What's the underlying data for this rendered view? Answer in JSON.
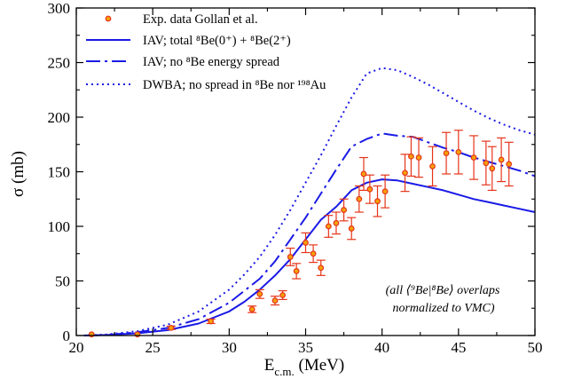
{
  "chart_data": {
    "type": "scatter",
    "xlim": [
      20,
      50
    ],
    "ylim": [
      0,
      300
    ],
    "x_ticks": [
      "20",
      "25",
      "30",
      "35",
      "40",
      "45",
      "50"
    ],
    "y_ticks": [
      "0",
      "50",
      "100",
      "150",
      "200",
      "250",
      "300"
    ],
    "xlabel": "E",
    "xlabel_sub": "c.m.",
    "xlabel_unit": " (MeV)",
    "ylabel": "σ (mb)",
    "grid": false,
    "legend_position": "top-left",
    "colors": {
      "data": "#e63419",
      "marker_fill": "#f4a00a",
      "theory": "#1a1ae6"
    },
    "legend": [
      {
        "label": "Exp. data Gollan et al.",
        "style": "marker"
      },
      {
        "label": "IAV; total ⁸Be(0⁺) + ⁸Be(2⁺)",
        "style": "solid"
      },
      {
        "label": "IAV; no ⁸Be energy spread",
        "style": "dashdot"
      },
      {
        "label": "DWBA; no spread in ⁸Be nor ¹⁹⁸Au",
        "style": "dotted"
      }
    ],
    "annotation": [
      "(all ⟨⁹Be|⁸Be⟩ overlaps",
      "normalized to VMC)"
    ],
    "series": [
      {
        "name": "Exp. data Gollan et al.",
        "style": "marker",
        "points": [
          [
            21.0,
            1,
            0
          ],
          [
            24.0,
            1,
            0
          ],
          [
            26.2,
            7,
            1.5
          ],
          [
            28.8,
            13,
            2
          ],
          [
            31.5,
            24,
            3
          ],
          [
            32.0,
            38,
            4
          ],
          [
            33.0,
            32,
            4
          ],
          [
            33.5,
            37,
            4
          ],
          [
            34.0,
            72,
            8
          ],
          [
            34.4,
            59,
            7
          ],
          [
            35.0,
            85,
            9
          ],
          [
            35.5,
            75,
            8
          ],
          [
            36.0,
            62,
            7
          ],
          [
            36.5,
            100,
            10
          ],
          [
            37.0,
            103,
            10
          ],
          [
            37.5,
            115,
            10
          ],
          [
            38.0,
            98,
            10
          ],
          [
            38.5,
            125,
            12
          ],
          [
            38.8,
            148,
            15
          ],
          [
            39.2,
            134,
            13
          ],
          [
            39.7,
            123,
            14
          ],
          [
            40.2,
            132,
            15
          ],
          [
            41.5,
            149,
            17
          ],
          [
            41.9,
            164,
            18
          ],
          [
            42.4,
            163,
            18
          ],
          [
            43.3,
            155,
            18
          ],
          [
            44.2,
            167,
            19
          ],
          [
            45.0,
            168,
            20
          ],
          [
            46.0,
            163,
            20
          ],
          [
            46.8,
            158,
            20
          ],
          [
            47.2,
            153,
            20
          ],
          [
            47.8,
            161,
            20
          ],
          [
            48.3,
            157,
            20
          ]
        ]
      },
      {
        "name": "IAV; total ⁸Be(0⁺) + ⁸Be(2⁺)",
        "style": "solid",
        "points": [
          [
            20.5,
            0
          ],
          [
            22,
            0.5
          ],
          [
            24,
            2
          ],
          [
            26,
            5
          ],
          [
            28,
            11
          ],
          [
            30,
            22
          ],
          [
            31,
            31
          ],
          [
            32,
            42
          ],
          [
            33,
            55
          ],
          [
            34,
            70
          ],
          [
            35,
            88
          ],
          [
            36,
            106
          ],
          [
            37,
            118
          ],
          [
            38,
            133
          ],
          [
            39,
            140
          ],
          [
            40,
            143
          ],
          [
            41,
            142
          ],
          [
            42,
            139
          ],
          [
            43,
            136
          ],
          [
            44,
            133
          ],
          [
            45,
            129
          ],
          [
            46,
            125
          ],
          [
            47,
            122
          ],
          [
            48,
            119
          ],
          [
            49,
            116
          ],
          [
            50,
            113
          ]
        ]
      },
      {
        "name": "IAV; no ⁸Be energy spread",
        "style": "dashdot",
        "points": [
          [
            20.5,
            0
          ],
          [
            22,
            0.5
          ],
          [
            24,
            3
          ],
          [
            26,
            7
          ],
          [
            28,
            15
          ],
          [
            30,
            30
          ],
          [
            32,
            52
          ],
          [
            33,
            68
          ],
          [
            34,
            88
          ],
          [
            35,
            108
          ],
          [
            36,
            130
          ],
          [
            37,
            152
          ],
          [
            38,
            173
          ],
          [
            39,
            180
          ],
          [
            40,
            185
          ],
          [
            41,
            183
          ],
          [
            42,
            182
          ],
          [
            43,
            177
          ],
          [
            44,
            172
          ],
          [
            45,
            168
          ],
          [
            46,
            163
          ],
          [
            47,
            159
          ],
          [
            48,
            155
          ],
          [
            49,
            151
          ],
          [
            50,
            146
          ]
        ]
      },
      {
        "name": "DWBA; no spread in ⁸Be nor ¹⁹⁸Au",
        "style": "dotted",
        "points": [
          [
            20.5,
            0
          ],
          [
            22,
            1
          ],
          [
            24,
            4
          ],
          [
            26,
            10
          ],
          [
            28,
            22
          ],
          [
            30,
            42
          ],
          [
            31,
            56
          ],
          [
            32,
            72
          ],
          [
            33,
            92
          ],
          [
            34,
            115
          ],
          [
            35,
            140
          ],
          [
            36,
            165
          ],
          [
            37,
            192
          ],
          [
            38,
            218
          ],
          [
            39,
            240
          ],
          [
            40,
            245
          ],
          [
            41,
            243
          ],
          [
            42,
            237
          ],
          [
            43,
            230
          ],
          [
            44,
            222
          ],
          [
            45,
            214
          ],
          [
            46,
            206
          ],
          [
            47,
            199
          ],
          [
            48,
            193
          ],
          [
            49,
            188
          ],
          [
            50,
            184
          ]
        ]
      }
    ]
  }
}
